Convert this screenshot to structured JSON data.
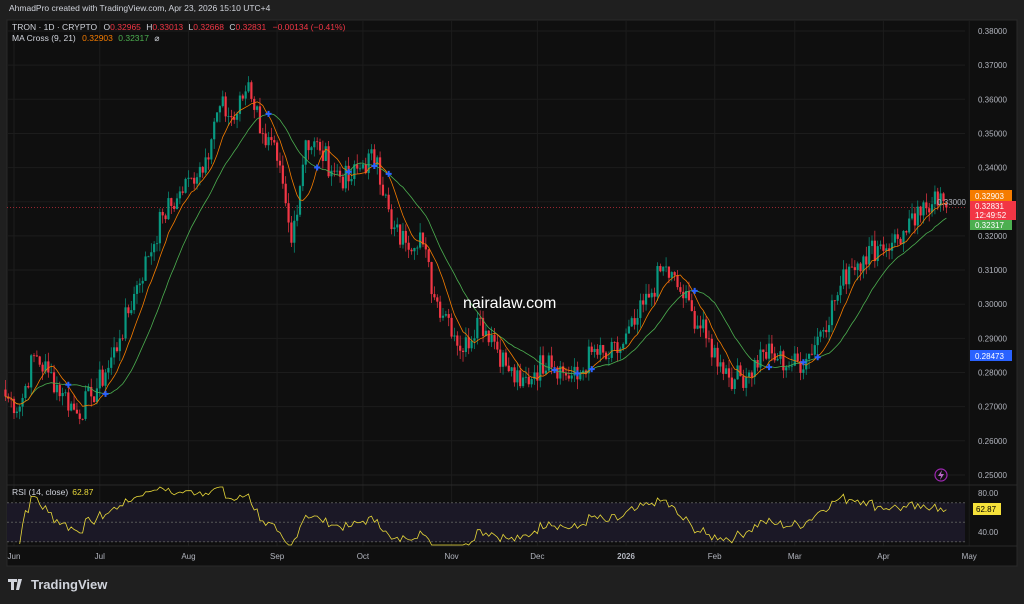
{
  "header": {
    "credit": "AhmadPro created with TradingView.com, Apr 23, 2026 15:10 UTC+4",
    "symbol": "TRON · 1D · CRYPTO",
    "o_label": "O",
    "o": "0.32965",
    "h_label": "H",
    "h": "0.33013",
    "l_label": "L",
    "l": "0.32668",
    "c_label": "C",
    "c": "0.32831",
    "change": "−0.00134 (−0.41%)",
    "ma_label": "MA Cross (9, 21)",
    "ma_fast": "0.32903",
    "ma_slow": "0.32317",
    "ma_icon": "eye-off-icon"
  },
  "watermark": "nairalaw.com",
  "price_axis": {
    "ticks": [
      "0.38000",
      "0.37000",
      "0.36000",
      "0.35000",
      "0.34000",
      "0.33000",
      "0.32000",
      "0.31000",
      "0.30000",
      "0.29000",
      "0.28000",
      "0.27000",
      "0.26000",
      "0.25000"
    ],
    "ma_fast_badge": "0.32903",
    "last_price_badge": "0.32831",
    "countdown": "12:49:52",
    "ma_slow_badge": "0.32317",
    "crosshair_badge": "0.28473"
  },
  "rsi": {
    "label": "RSI (14, close)",
    "value": "62.87",
    "ticks": [
      "80.00",
      "40.00"
    ],
    "upper_band": 70,
    "middle": 50,
    "lower_band": 30
  },
  "time_axis": [
    "Jun",
    "Jul",
    "Aug",
    "Sep",
    "Oct",
    "Nov",
    "Dec",
    "2026",
    "Feb",
    "Mar",
    "Apr",
    "May"
  ],
  "footer": {
    "brand": "TradingView"
  },
  "colors": {
    "up": "#089981",
    "down": "#f23645",
    "ma_fast": "#f57c00",
    "ma_slow": "#4caf50",
    "cross": "#2962ff",
    "rsi": "#e8d83a",
    "background": "#0f0f0f"
  },
  "chart_data": {
    "type": "candlestick",
    "symbol": "TRON",
    "interval": "1D",
    "ylim": [
      0.25,
      0.38
    ],
    "grid": true,
    "indicators": [
      "MA Cross (9, 21)",
      "RSI (14, close)"
    ],
    "close_points": [
      [
        "2025-05-29",
        0.273
      ],
      [
        "2025-06-03",
        0.27
      ],
      [
        "2025-06-08",
        0.285
      ],
      [
        "2025-06-13",
        0.28
      ],
      [
        "2025-06-18",
        0.274
      ],
      [
        "2025-06-23",
        0.268
      ],
      [
        "2025-06-28",
        0.273
      ],
      [
        "2025-07-03",
        0.28
      ],
      [
        "2025-07-08",
        0.29
      ],
      [
        "2025-07-13",
        0.303
      ],
      [
        "2025-07-18",
        0.314
      ],
      [
        "2025-07-23",
        0.326
      ],
      [
        "2025-07-28",
        0.331
      ],
      [
        "2025-08-02",
        0.337
      ],
      [
        "2025-08-07",
        0.343
      ],
      [
        "2025-08-12",
        0.358
      ],
      [
        "2025-08-17",
        0.354
      ],
      [
        "2025-08-22",
        0.365
      ],
      [
        "2025-08-27",
        0.35
      ],
      [
        "2025-09-01",
        0.342
      ],
      [
        "2025-09-06",
        0.318
      ],
      [
        "2025-09-11",
        0.348
      ],
      [
        "2025-09-16",
        0.345
      ],
      [
        "2025-09-21",
        0.339
      ],
      [
        "2025-09-26",
        0.336
      ],
      [
        "2025-10-01",
        0.341
      ],
      [
        "2025-10-06",
        0.343
      ],
      [
        "2025-10-11",
        0.322
      ],
      [
        "2025-10-16",
        0.318
      ],
      [
        "2025-10-21",
        0.321
      ],
      [
        "2025-10-26",
        0.302
      ],
      [
        "2025-10-31",
        0.296
      ],
      [
        "2025-11-05",
        0.286
      ],
      [
        "2025-11-10",
        0.296
      ],
      [
        "2025-11-15",
        0.291
      ],
      [
        "2025-11-20",
        0.282
      ],
      [
        "2025-11-25",
        0.276
      ],
      [
        "2025-11-30",
        0.28
      ],
      [
        "2025-12-05",
        0.285
      ],
      [
        "2025-12-10",
        0.28
      ],
      [
        "2025-12-15",
        0.278
      ],
      [
        "2025-12-20",
        0.286
      ],
      [
        "2025-12-25",
        0.284
      ],
      [
        "2025-12-30",
        0.287
      ],
      [
        "2026-01-04",
        0.294
      ],
      [
        "2026-01-09",
        0.302
      ],
      [
        "2026-01-14",
        0.311
      ],
      [
        "2026-01-19",
        0.305
      ],
      [
        "2026-01-24",
        0.298
      ],
      [
        "2026-01-29",
        0.29
      ],
      [
        "2026-02-03",
        0.283
      ],
      [
        "2026-02-08",
        0.278
      ],
      [
        "2026-02-13",
        0.28
      ],
      [
        "2026-02-18",
        0.286
      ],
      [
        "2026-02-23",
        0.284
      ],
      [
        "2026-02-28",
        0.282
      ],
      [
        "2026-03-05",
        0.284
      ],
      [
        "2026-03-10",
        0.292
      ],
      [
        "2026-03-15",
        0.301
      ],
      [
        "2026-03-20",
        0.311
      ],
      [
        "2026-03-25",
        0.314
      ],
      [
        "2026-03-30",
        0.317
      ],
      [
        "2026-04-04",
        0.318
      ],
      [
        "2026-04-09",
        0.321
      ],
      [
        "2026-04-14",
        0.326
      ],
      [
        "2026-04-19",
        0.333
      ],
      [
        "2026-04-23",
        0.32831
      ]
    ],
    "last_candle": {
      "date": "2026-04-23",
      "open": 0.32965,
      "high": 0.33013,
      "low": 0.32668,
      "close": 0.32831
    },
    "ma_fast_last": 0.32903,
    "ma_slow_last": 0.32317,
    "rsi_last": 62.87
  }
}
